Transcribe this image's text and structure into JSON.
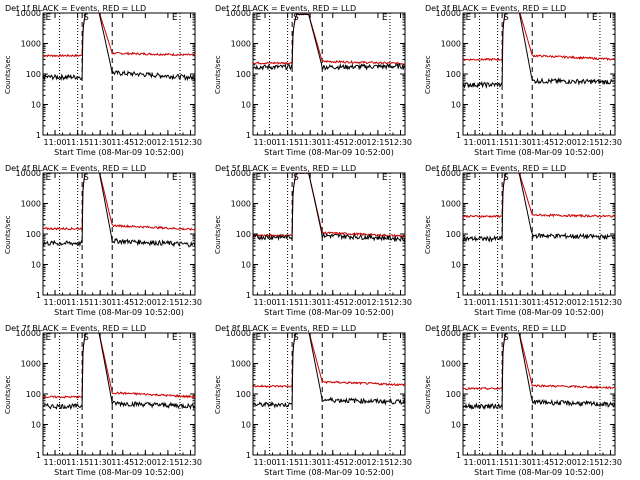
{
  "chart_data": [
    {
      "type": "line",
      "title": "Det 1f BLACK = Events, RED = LLD",
      "ylabel": "Counts/sec",
      "xlabel": "Start Time (08-Mar-09 10:52:00)",
      "xticks": [
        "11:00",
        "11:15",
        "11:30",
        "11:45",
        "12:00",
        "12:15",
        "12:30"
      ],
      "yticks": [
        "1",
        "10",
        "100",
        "1000",
        "10000"
      ],
      "yscale": "log",
      "ylim": [
        1,
        10000
      ],
      "xlim": [
        "10:52",
        "12:33"
      ],
      "markers": [
        "E",
        "S",
        "E"
      ],
      "black_level": [
        80,
        110,
        75
      ],
      "red_level": [
        400,
        480,
        420
      ],
      "peak": 12000
    },
    {
      "type": "line",
      "title": "Det 2f BLACK = Events, RED = LLD",
      "ylabel": "Counts/sec",
      "xlabel": "Start Time (08-Mar-09 10:52:00)",
      "xticks": [
        "11:00",
        "11:15",
        "11:30",
        "11:45",
        "12:00",
        "12:15",
        "12:30"
      ],
      "yticks": [
        "1",
        "10",
        "100",
        "1000",
        "10000"
      ],
      "yscale": "log",
      "ylim": [
        1,
        10000
      ],
      "xlim": [
        "10:52",
        "12:33"
      ],
      "markers": [
        "E",
        "S",
        "E"
      ],
      "black_level": [
        170,
        170,
        180
      ],
      "red_level": [
        230,
        260,
        220
      ],
      "peak": 9000
    },
    {
      "type": "line",
      "title": "Det 3f BLACK = Events, RED = LLD",
      "ylabel": "Counts/sec",
      "xlabel": "Start Time (08-Mar-09 10:52:00)",
      "xticks": [
        "11:00",
        "11:15",
        "11:30",
        "11:45",
        "12:00",
        "12:15",
        "12:30"
      ],
      "yticks": [
        "1",
        "10",
        "100",
        "1000",
        "10000"
      ],
      "yscale": "log",
      "ylim": [
        1,
        10000
      ],
      "xlim": [
        "10:52",
        "12:33"
      ],
      "markers": [
        "E",
        "S",
        "E"
      ],
      "black_level": [
        45,
        60,
        55
      ],
      "red_level": [
        300,
        400,
        300
      ],
      "peak": 14000
    },
    {
      "type": "line",
      "title": "Det 4f BLACK = Events, RED = LLD",
      "ylabel": "Counts/sec",
      "xlabel": "Start Time (08-Mar-09 10:52:00)",
      "xticks": [
        "11:00",
        "11:15",
        "11:30",
        "11:45",
        "12:00",
        "12:15",
        "12:30"
      ],
      "yticks": [
        "1",
        "10",
        "100",
        "1000",
        "10000"
      ],
      "yscale": "log",
      "ylim": [
        1,
        10000
      ],
      "xlim": [
        "10:52",
        "12:33"
      ],
      "markers": [
        "E",
        "S",
        "E"
      ],
      "black_level": [
        50,
        60,
        45
      ],
      "red_level": [
        150,
        190,
        140
      ],
      "peak": 14000
    },
    {
      "type": "line",
      "title": "Det 5f BLACK = Events, RED = LLD",
      "ylabel": "Counts/sec",
      "xlabel": "Start Time (08-Mar-09 10:52:00)",
      "xticks": [
        "11:00",
        "11:15",
        "11:30",
        "11:45",
        "12:00",
        "12:15",
        "12:30"
      ],
      "yticks": [
        "1",
        "10",
        "100",
        "1000",
        "10000"
      ],
      "yscale": "log",
      "ylim": [
        1,
        10000
      ],
      "xlim": [
        "10:52",
        "12:33"
      ],
      "markers": [
        "E",
        "S",
        "E"
      ],
      "black_level": [
        80,
        90,
        70
      ],
      "red_level": [
        90,
        110,
        85
      ],
      "peak": 10000
    },
    {
      "type": "line",
      "title": "Det 6f BLACK = Events, RED = LLD",
      "ylabel": "Counts/sec",
      "xlabel": "Start Time (08-Mar-09 10:52:00)",
      "xticks": [
        "11:00",
        "11:15",
        "11:30",
        "11:45",
        "12:00",
        "12:15",
        "12:30"
      ],
      "yticks": [
        "1",
        "10",
        "100",
        "1000",
        "10000"
      ],
      "yscale": "log",
      "ylim": [
        1,
        10000
      ],
      "xlim": [
        "10:52",
        "12:33"
      ],
      "markers": [
        "E",
        "S",
        "E"
      ],
      "black_level": [
        70,
        90,
        80
      ],
      "red_level": [
        380,
        420,
        380
      ],
      "peak": 12000
    },
    {
      "type": "line",
      "title": "Det 7f BLACK = Events, RED = LLD",
      "ylabel": "Counts/sec",
      "xlabel": "Start Time (08-Mar-09 10:52:00)",
      "xticks": [
        "11:00",
        "11:15",
        "11:30",
        "11:45",
        "12:00",
        "12:15",
        "12:30"
      ],
      "yticks": [
        "1",
        "10",
        "100",
        "1000",
        "10000"
      ],
      "yscale": "log",
      "ylim": [
        1,
        10000
      ],
      "xlim": [
        "10:52",
        "12:33"
      ],
      "markers": [
        "E",
        "S",
        "E"
      ],
      "black_level": [
        40,
        50,
        40
      ],
      "red_level": [
        80,
        110,
        80
      ],
      "peak": 12000
    },
    {
      "type": "line",
      "title": "Det 8f BLACK = Events, RED = LLD",
      "ylabel": "Counts/sec",
      "xlabel": "Start Time (08-Mar-09 10:52:00)",
      "xticks": [
        "11:00",
        "11:15",
        "11:30",
        "11:45",
        "12:00",
        "12:15",
        "12:30"
      ],
      "yticks": [
        "1",
        "10",
        "100",
        "1000",
        "10000"
      ],
      "yscale": "log",
      "ylim": [
        1,
        10000
      ],
      "xlim": [
        "10:52",
        "12:33"
      ],
      "markers": [
        "E",
        "S",
        "E"
      ],
      "black_level": [
        45,
        65,
        55
      ],
      "red_level": [
        180,
        250,
        200
      ],
      "peak": 12000
    },
    {
      "type": "line",
      "title": "Det 9f BLACK = Events, RED = LLD",
      "ylabel": "Counts/sec",
      "xlabel": "Start Time (08-Mar-09 10:52:00)",
      "xticks": [
        "11:00",
        "11:15",
        "11:30",
        "11:45",
        "12:00",
        "12:15",
        "12:30"
      ],
      "yticks": [
        "1",
        "10",
        "100",
        "1000",
        "10000"
      ],
      "yscale": "log",
      "ylim": [
        1,
        10000
      ],
      "xlim": [
        "10:52",
        "12:33"
      ],
      "markers": [
        "E",
        "S",
        "E"
      ],
      "black_level": [
        40,
        55,
        45
      ],
      "red_level": [
        150,
        190,
        160
      ],
      "peak": 12000
    }
  ],
  "colors": {
    "events": "#000000",
    "lld": "#cc0000"
  }
}
